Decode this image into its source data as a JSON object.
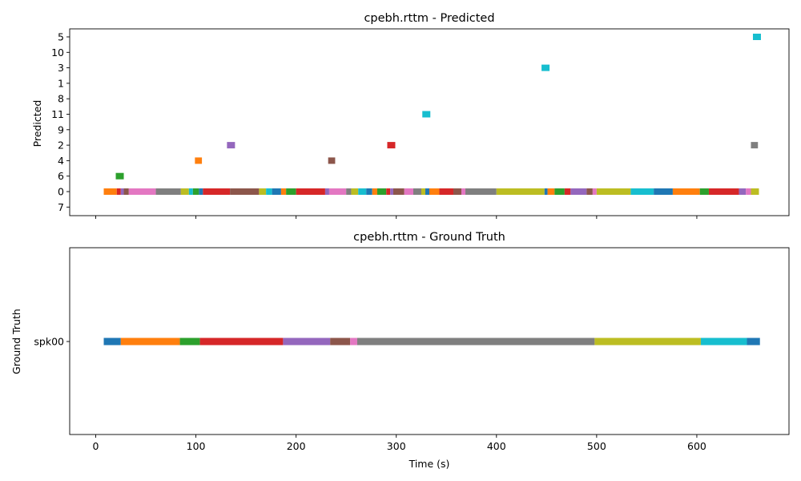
{
  "figure": {
    "xlabel": "Time (s)",
    "xticks": [
      0,
      100,
      200,
      300,
      400,
      500,
      600
    ]
  },
  "chart_data": [
    {
      "type": "timeline",
      "title": "cpebh.rttm - Predicted",
      "ylabel": "Predicted",
      "xlim": [
        -26,
        692
      ],
      "categories": [
        "5",
        "10",
        "3",
        "1",
        "8",
        "11",
        "9",
        "2",
        "4",
        "6",
        "0",
        "7"
      ],
      "segments": [
        {
          "label": "0",
          "start": 8,
          "end": 21,
          "color": "#ff7f0e"
        },
        {
          "label": "0",
          "start": 21,
          "end": 25,
          "color": "#d62728"
        },
        {
          "label": "0",
          "start": 25,
          "end": 28,
          "color": "#9467bd"
        },
        {
          "label": "0",
          "start": 28,
          "end": 33,
          "color": "#8c564b"
        },
        {
          "label": "0",
          "start": 33,
          "end": 60,
          "color": "#e377c2"
        },
        {
          "label": "0",
          "start": 60,
          "end": 85,
          "color": "#7f7f7f"
        },
        {
          "label": "0",
          "start": 85,
          "end": 93,
          "color": "#bcbd22"
        },
        {
          "label": "0",
          "start": 93,
          "end": 97,
          "color": "#17becf"
        },
        {
          "label": "0",
          "start": 97,
          "end": 103,
          "color": "#2ca02c"
        },
        {
          "label": "0",
          "start": 103,
          "end": 107,
          "color": "#1f77b4"
        },
        {
          "label": "0",
          "start": 107,
          "end": 134,
          "color": "#d62728"
        },
        {
          "label": "0",
          "start": 134,
          "end": 163,
          "color": "#8c564b"
        },
        {
          "label": "0",
          "start": 163,
          "end": 170,
          "color": "#bcbd22"
        },
        {
          "label": "0",
          "start": 170,
          "end": 176,
          "color": "#17becf"
        },
        {
          "label": "0",
          "start": 176,
          "end": 185,
          "color": "#1f77b4"
        },
        {
          "label": "0",
          "start": 185,
          "end": 190,
          "color": "#ff7f0e"
        },
        {
          "label": "0",
          "start": 190,
          "end": 200,
          "color": "#2ca02c"
        },
        {
          "label": "0",
          "start": 200,
          "end": 229,
          "color": "#d62728"
        },
        {
          "label": "0",
          "start": 229,
          "end": 233,
          "color": "#9467bd"
        },
        {
          "label": "0",
          "start": 233,
          "end": 250,
          "color": "#e377c2"
        },
        {
          "label": "0",
          "start": 250,
          "end": 255,
          "color": "#7f7f7f"
        },
        {
          "label": "0",
          "start": 255,
          "end": 262,
          "color": "#bcbd22"
        },
        {
          "label": "0",
          "start": 262,
          "end": 270,
          "color": "#17becf"
        },
        {
          "label": "0",
          "start": 270,
          "end": 276,
          "color": "#1f77b4"
        },
        {
          "label": "0",
          "start": 276,
          "end": 281,
          "color": "#ff7f0e"
        },
        {
          "label": "0",
          "start": 281,
          "end": 290,
          "color": "#2ca02c"
        },
        {
          "label": "0",
          "start": 290,
          "end": 294,
          "color": "#d62728"
        },
        {
          "label": "0",
          "start": 294,
          "end": 297,
          "color": "#9467bd"
        },
        {
          "label": "0",
          "start": 297,
          "end": 308,
          "color": "#8c564b"
        },
        {
          "label": "0",
          "start": 308,
          "end": 317,
          "color": "#e377c2"
        },
        {
          "label": "0",
          "start": 317,
          "end": 325,
          "color": "#7f7f7f"
        },
        {
          "label": "0",
          "start": 325,
          "end": 329,
          "color": "#bcbd22"
        },
        {
          "label": "0",
          "start": 329,
          "end": 333,
          "color": "#1f77b4"
        },
        {
          "label": "0",
          "start": 333,
          "end": 343,
          "color": "#ff7f0e"
        },
        {
          "label": "0",
          "start": 343,
          "end": 357,
          "color": "#d62728"
        },
        {
          "label": "0",
          "start": 357,
          "end": 365,
          "color": "#8c564b"
        },
        {
          "label": "0",
          "start": 365,
          "end": 369,
          "color": "#e377c2"
        },
        {
          "label": "0",
          "start": 369,
          "end": 400,
          "color": "#7f7f7f"
        },
        {
          "label": "0",
          "start": 400,
          "end": 448,
          "color": "#bcbd22"
        },
        {
          "label": "0",
          "start": 448,
          "end": 451,
          "color": "#1f77b4"
        },
        {
          "label": "0",
          "start": 451,
          "end": 458,
          "color": "#ff7f0e"
        },
        {
          "label": "0",
          "start": 458,
          "end": 468,
          "color": "#2ca02c"
        },
        {
          "label": "0",
          "start": 468,
          "end": 474,
          "color": "#d62728"
        },
        {
          "label": "0",
          "start": 474,
          "end": 490,
          "color": "#9467bd"
        },
        {
          "label": "0",
          "start": 490,
          "end": 496,
          "color": "#8c564b"
        },
        {
          "label": "0",
          "start": 496,
          "end": 500,
          "color": "#e377c2"
        },
        {
          "label": "0",
          "start": 500,
          "end": 534,
          "color": "#bcbd22"
        },
        {
          "label": "0",
          "start": 534,
          "end": 557,
          "color": "#17becf"
        },
        {
          "label": "0",
          "start": 557,
          "end": 576,
          "color": "#1f77b4"
        },
        {
          "label": "0",
          "start": 576,
          "end": 603,
          "color": "#ff7f0e"
        },
        {
          "label": "0",
          "start": 603,
          "end": 612,
          "color": "#2ca02c"
        },
        {
          "label": "0",
          "start": 612,
          "end": 642,
          "color": "#d62728"
        },
        {
          "label": "0",
          "start": 642,
          "end": 649,
          "color": "#9467bd"
        },
        {
          "label": "0",
          "start": 649,
          "end": 654,
          "color": "#e377c2"
        },
        {
          "label": "0",
          "start": 654,
          "end": 662,
          "color": "#bcbd22"
        },
        {
          "label": "6",
          "start": 20,
          "end": 28,
          "color": "#2ca02c"
        },
        {
          "label": "4",
          "start": 99,
          "end": 106,
          "color": "#ff7f0e"
        },
        {
          "label": "2",
          "start": 131,
          "end": 139,
          "color": "#9467bd"
        },
        {
          "label": "4",
          "start": 232,
          "end": 239,
          "color": "#8c564b"
        },
        {
          "label": "2",
          "start": 291,
          "end": 299,
          "color": "#d62728"
        },
        {
          "label": "11",
          "start": 326,
          "end": 334,
          "color": "#17becf"
        },
        {
          "label": "3",
          "start": 445,
          "end": 453,
          "color": "#17becf"
        },
        {
          "label": "2",
          "start": 654,
          "end": 661,
          "color": "#7f7f7f"
        },
        {
          "label": "5",
          "start": 656,
          "end": 664,
          "color": "#17becf"
        }
      ]
    },
    {
      "type": "timeline",
      "title": "cpebh.rttm - Ground Truth",
      "ylabel": "Ground Truth",
      "xlim": [
        -26,
        692
      ],
      "categories": [
        "spk00"
      ],
      "segments": [
        {
          "label": "spk00",
          "start": 8,
          "end": 25,
          "color": "#1f77b4"
        },
        {
          "label": "spk00",
          "start": 25,
          "end": 84,
          "color": "#ff7f0e"
        },
        {
          "label": "spk00",
          "start": 84,
          "end": 104,
          "color": "#2ca02c"
        },
        {
          "label": "spk00",
          "start": 104,
          "end": 187,
          "color": "#d62728"
        },
        {
          "label": "spk00",
          "start": 187,
          "end": 234,
          "color": "#9467bd"
        },
        {
          "label": "spk00",
          "start": 234,
          "end": 254,
          "color": "#8c564b"
        },
        {
          "label": "spk00",
          "start": 254,
          "end": 261,
          "color": "#e377c2"
        },
        {
          "label": "spk00",
          "start": 261,
          "end": 498,
          "color": "#7f7f7f"
        },
        {
          "label": "spk00",
          "start": 498,
          "end": 604,
          "color": "#bcbd22"
        },
        {
          "label": "spk00",
          "start": 604,
          "end": 650,
          "color": "#17becf"
        },
        {
          "label": "spk00",
          "start": 650,
          "end": 663,
          "color": "#1f77b4"
        }
      ]
    }
  ]
}
